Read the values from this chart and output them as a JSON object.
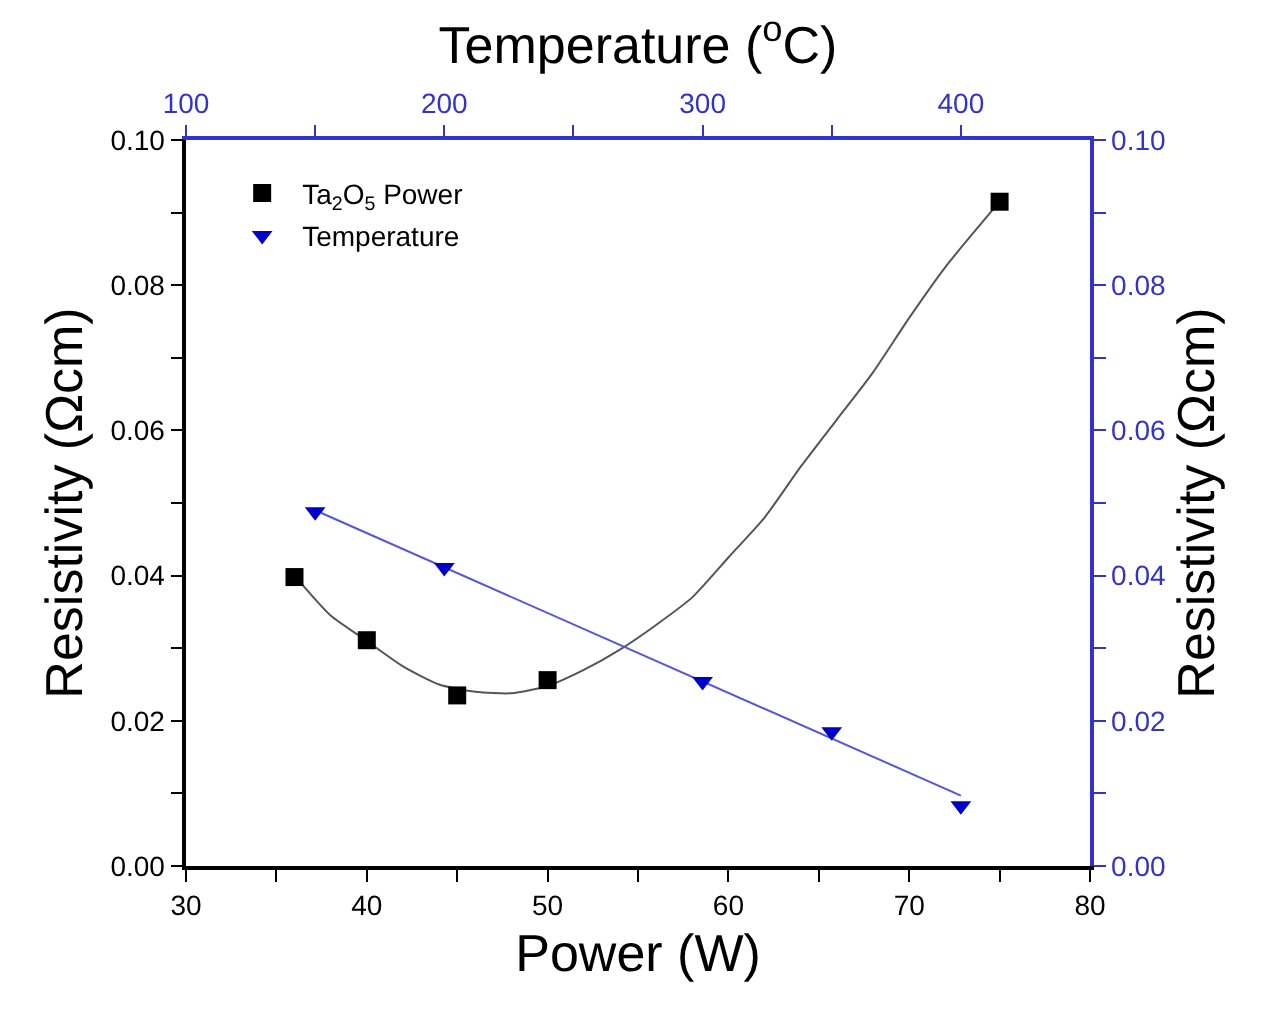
{
  "chart_data": {
    "type": "scatter",
    "xlabel": "Power (W)",
    "x2label": "Temperature ($^{o}$C)",
    "ylabel": "Resistivity (Ωcm)",
    "y2label": "Resistivity (Ωcm)",
    "xlim": [
      30,
      80
    ],
    "xticks": [
      30,
      {
        "value": 35,
        "label": null
      },
      40,
      {
        "value": 45,
        "label": null
      },
      50,
      {
        "value": 55,
        "label": null
      },
      60,
      {
        "value": 65,
        "label": null
      },
      70,
      {
        "value": 75,
        "label": null
      },
      80
    ],
    "x2lim": [
      100,
      450
    ],
    "x2ticks": [
      100,
      {
        "value": 150,
        "label": null
      },
      200,
      {
        "value": 250,
        "label": null
      },
      300,
      {
        "value": 350,
        "label": null
      },
      400
    ],
    "ylim": [
      0,
      0.1
    ],
    "yticks": [
      {
        "value": 0,
        "label": "0.00"
      },
      {
        "value": 0.01,
        "label": null
      },
      {
        "value": 0.02,
        "label": "0.02"
      },
      {
        "value": 0.03,
        "label": null
      },
      {
        "value": 0.04,
        "label": "0.04"
      },
      {
        "value": 0.05,
        "label": null
      },
      {
        "value": 0.06,
        "label": "0.06"
      },
      {
        "value": 0.07,
        "label": null
      },
      {
        "value": 0.08,
        "label": "0.08"
      },
      {
        "value": 0.09,
        "label": null
      },
      {
        "value": 0.1,
        "label": "0.10"
      }
    ],
    "y2lim": [
      0,
      0.1
    ],
    "y2ticks": [
      {
        "value": 0,
        "label": "0.00"
      },
      {
        "value": 0.01,
        "label": null
      },
      {
        "value": 0.02,
        "label": "0.02"
      },
      {
        "value": 0.03,
        "label": null
      },
      {
        "value": 0.04,
        "label": "0.04"
      },
      {
        "value": 0.05,
        "label": null
      },
      {
        "value": 0.06,
        "label": "0.06"
      },
      {
        "value": 0.07,
        "label": null
      },
      {
        "value": 0.08,
        "label": "0.08"
      },
      {
        "value": 0.09,
        "label": null
      },
      {
        "value": 0.1,
        "label": "0.10"
      }
    ],
    "grid": false,
    "legend": "top left",
    "series": [
      {
        "type": "line",
        "color": "#555555",
        "marker": "none",
        "x": [
          36,
          38,
          40,
          42,
          44,
          46,
          48,
          50,
          52,
          54,
          56,
          58,
          60,
          62,
          64,
          66,
          68,
          70,
          72,
          75
        ],
        "values": [
          0.04,
          0.0345,
          0.031,
          0.0275,
          0.025,
          0.024,
          0.0238,
          0.0248,
          0.027,
          0.0298,
          0.0332,
          0.037,
          0.0425,
          0.048,
          0.055,
          0.0615,
          0.068,
          0.0755,
          0.0825,
          0.0915
        ]
      },
      {
        "type": "line",
        "color": "#5555dd",
        "marker": "none",
        "axis": "x2",
        "x": [
          150,
          400
        ],
        "values": [
          0.049,
          0.0097
        ]
      },
      {
        "name": "Ta$_{2}$O$_{5}$ Power",
        "color": "#000000",
        "marker": "square",
        "x": [
          36,
          40,
          45,
          50,
          75
        ],
        "values": [
          0.0398,
          0.0311,
          0.0235,
          0.0256,
          0.0915
        ]
      },
      {
        "name": "Temperature",
        "color": "#0000cc",
        "marker": "triangle",
        "axis": "x2",
        "x": [
          150,
          200,
          300,
          350,
          400
        ],
        "values": [
          0.0488,
          0.0411,
          0.0254,
          0.0185,
          0.0083
        ]
      }
    ]
  }
}
